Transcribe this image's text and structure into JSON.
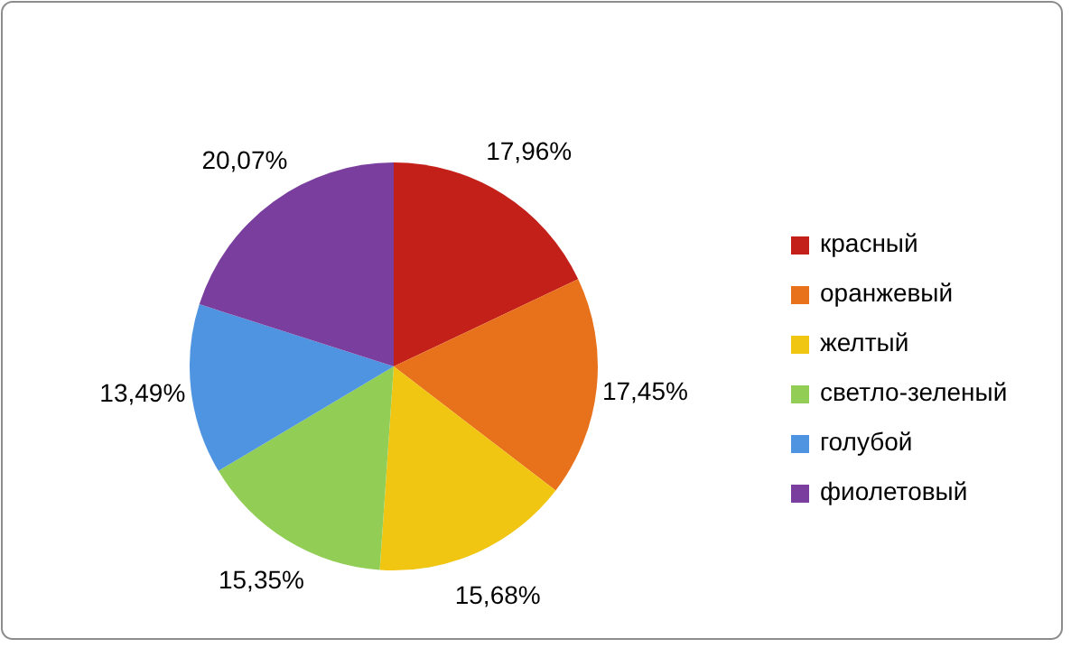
{
  "chart_data": {
    "type": "pie",
    "categories": [
      "красный",
      "оранжевый",
      "желтый",
      "светло-зеленый",
      "голубой",
      "фиолетовый"
    ],
    "values": [
      17.96,
      17.45,
      15.68,
      15.35,
      13.49,
      20.07
    ],
    "colors": [
      "#c4201a",
      "#e8721c",
      "#f0c613",
      "#92cd55",
      "#4f94e0",
      "#7a3f9e"
    ],
    "value_labels": [
      "17,96%",
      "17,45%",
      "15,68%",
      "15,35%",
      "13,49%",
      "20,07%"
    ],
    "legend": "right"
  }
}
